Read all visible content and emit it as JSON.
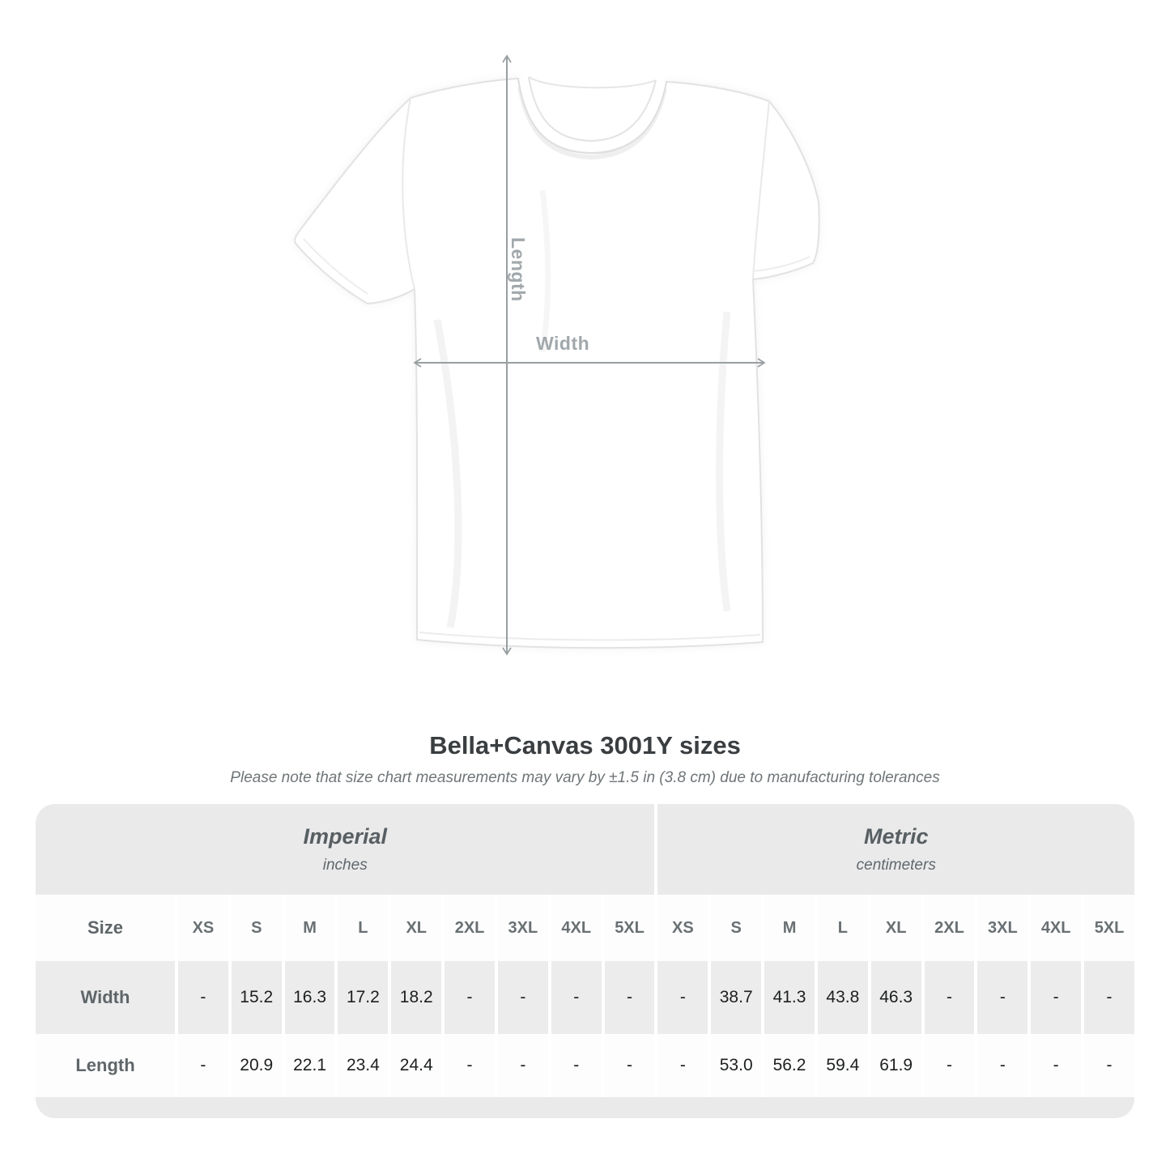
{
  "diagram": {
    "length_label": "Length",
    "width_label": "Width",
    "arrow_color": "#979fa2",
    "label_color": "#a1a8ac"
  },
  "title": "Bella+Canvas 3001Y sizes",
  "subtitle": "Please note that size chart measurements may vary by ±1.5 in (3.8 cm) due to manufacturing tolerances",
  "size_table": {
    "size_header_label": "Size",
    "unit_groups": [
      {
        "name": "Imperial",
        "unit": "inches"
      },
      {
        "name": "Metric",
        "unit": "centimeters"
      }
    ],
    "sizes": [
      "XS",
      "S",
      "M",
      "L",
      "XL",
      "2XL",
      "3XL",
      "4XL",
      "5XL"
    ],
    "rows": [
      {
        "label": "Width",
        "imperial": [
          "-",
          "15.2",
          "16.3",
          "17.2",
          "18.2",
          "-",
          "-",
          "-",
          "-"
        ],
        "metric": [
          "-",
          "38.7",
          "41.3",
          "43.8",
          "46.3",
          "-",
          "-",
          "-",
          "-"
        ]
      },
      {
        "label": "Length",
        "imperial": [
          "-",
          "20.9",
          "22.1",
          "23.4",
          "24.4",
          "-",
          "-",
          "-",
          "-"
        ],
        "metric": [
          "-",
          "53.0",
          "56.2",
          "59.4",
          "61.9",
          "-",
          "-",
          "-",
          "-"
        ]
      }
    ]
  }
}
